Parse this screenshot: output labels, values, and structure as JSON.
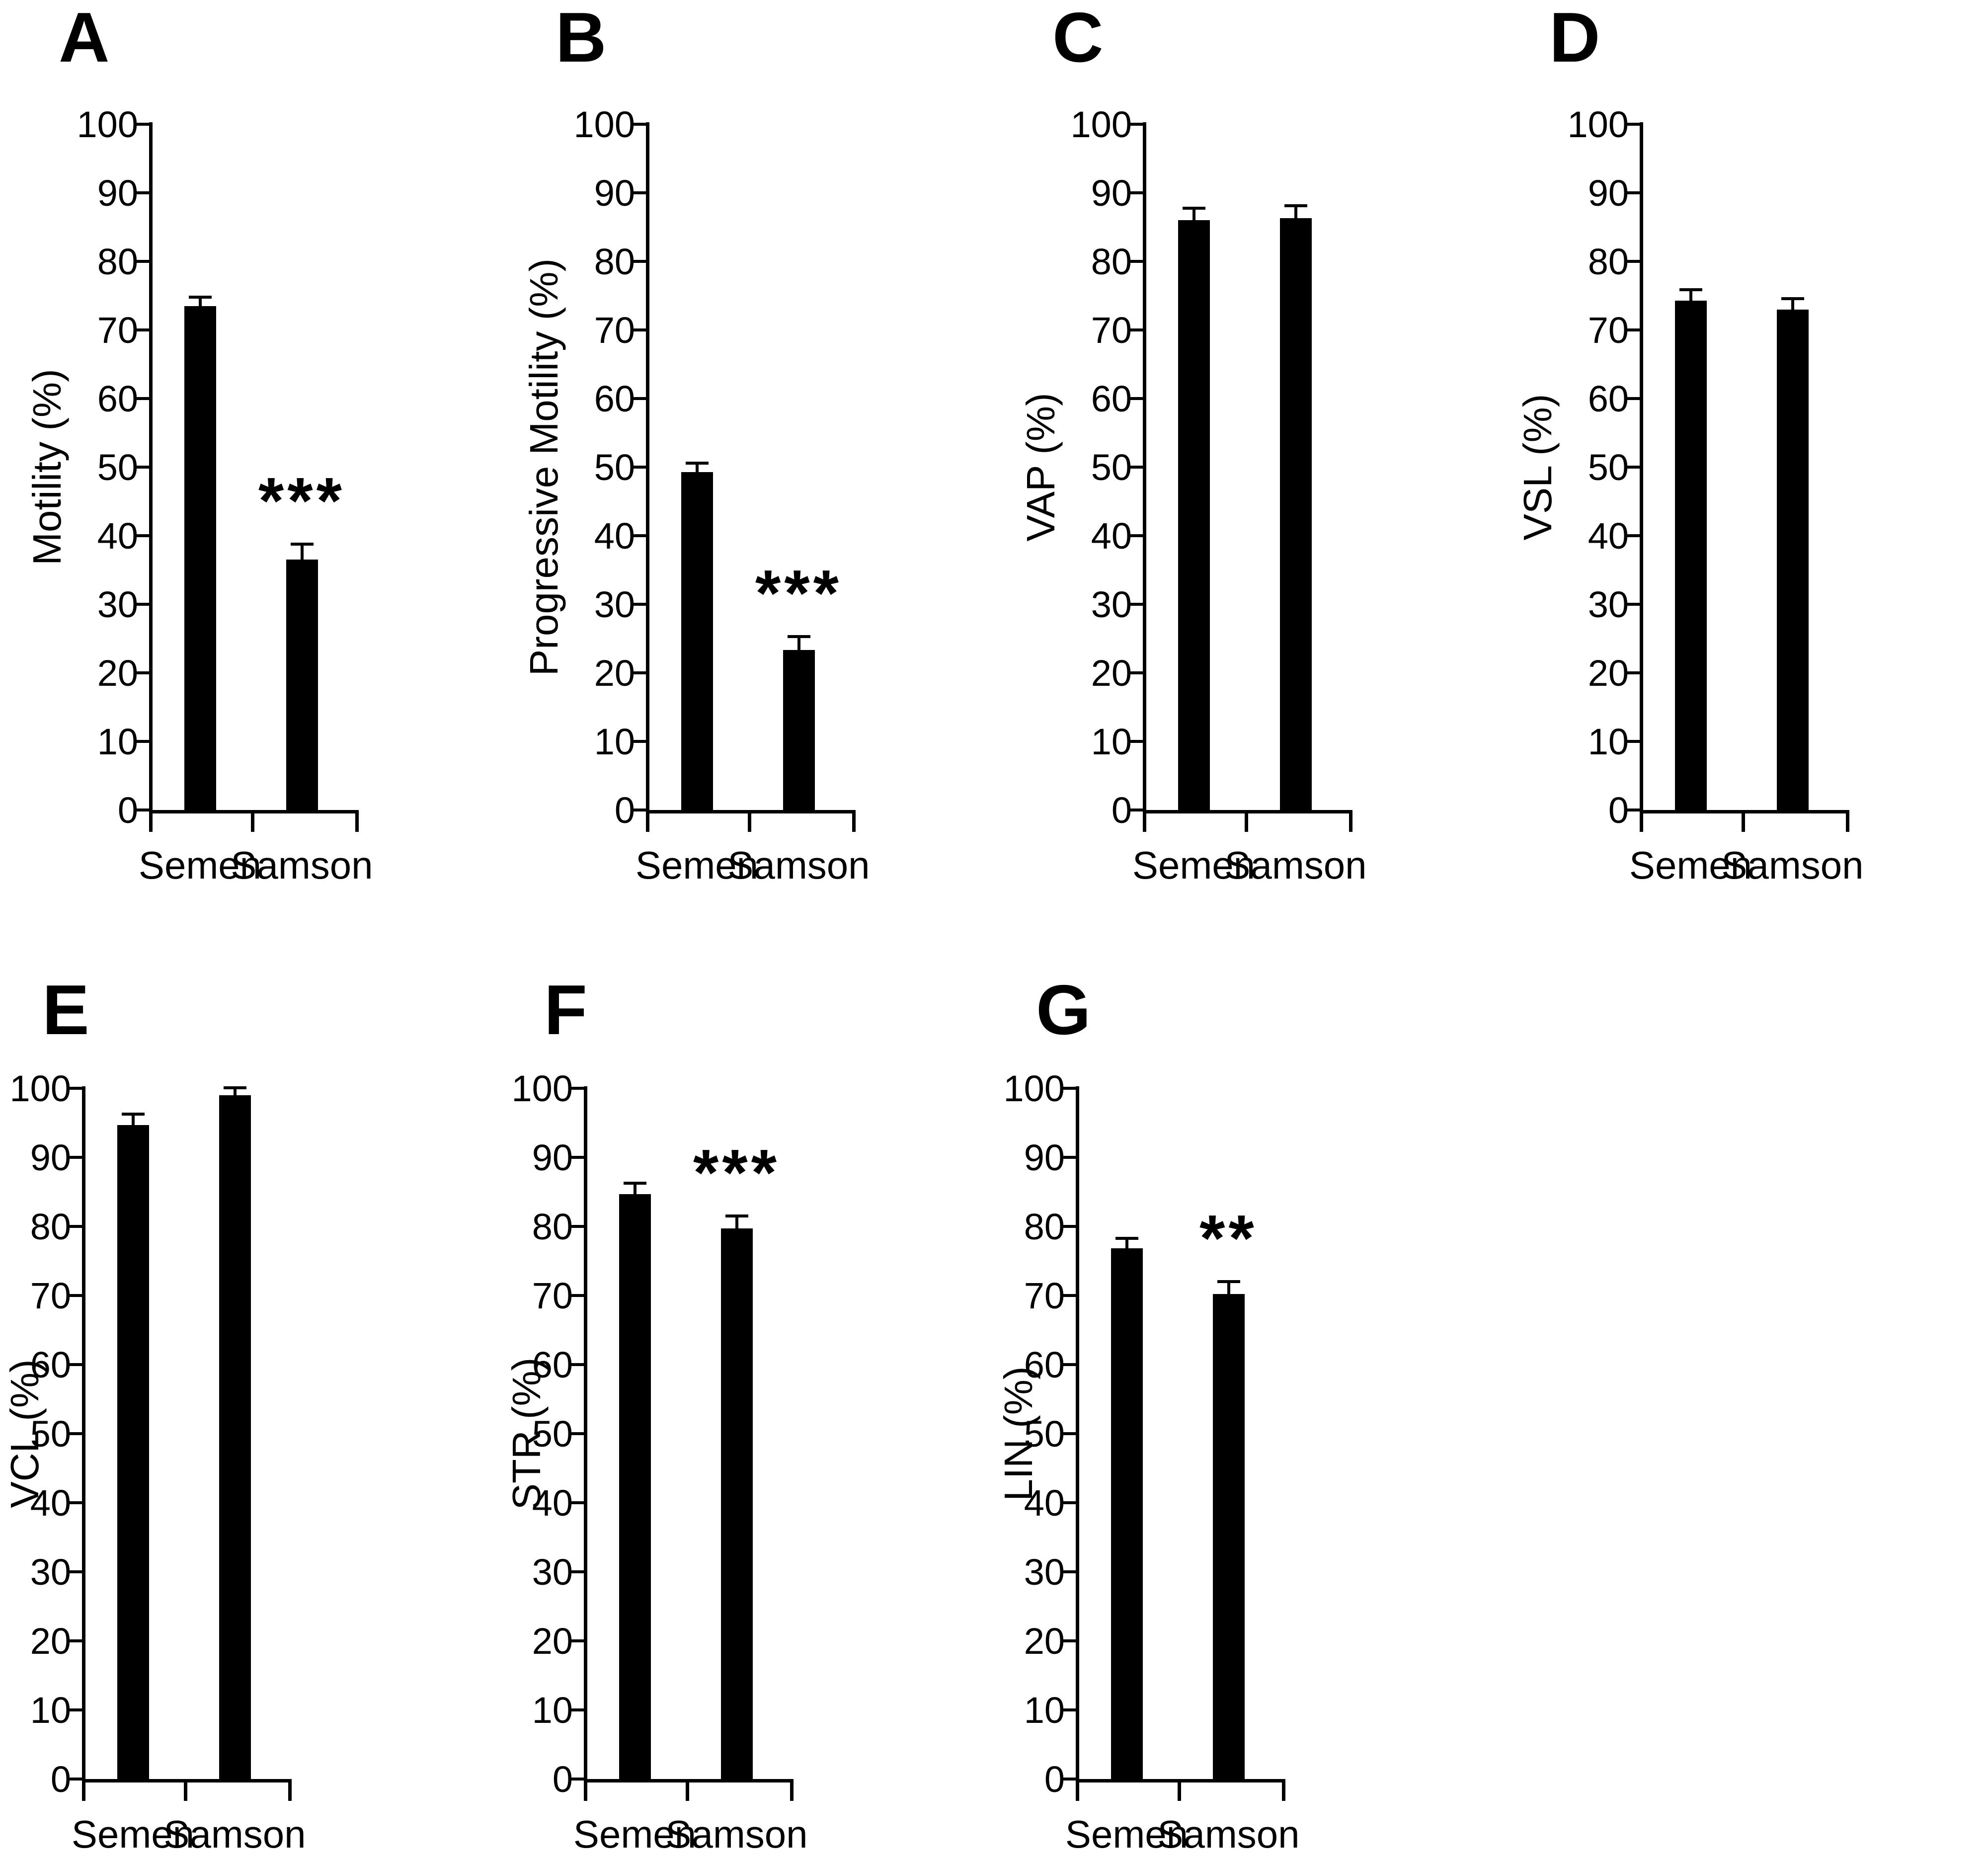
{
  "figure_background": "#ffffff",
  "bar_color": "#000000",
  "axis_color": "#000000",
  "y_axis": {
    "ticks": [
      "0",
      "10",
      "20",
      "30",
      "40",
      "50",
      "60",
      "70",
      "80",
      "90",
      "100"
    ]
  },
  "chart_data": [
    {
      "type": "bar",
      "title": "A",
      "ylabel": "Motility (%)",
      "ylim": [
        0,
        100
      ],
      "ytick_step": 10,
      "categories": [
        "Semen",
        "Samson"
      ],
      "values": [
        73.5,
        36.5
      ],
      "errors": [
        1.5,
        2.5
      ],
      "sig": [
        "",
        "***"
      ],
      "legend": "none",
      "grid": "off"
    },
    {
      "type": "bar",
      "title": "B",
      "ylabel": "Progressive Motility (%)",
      "ylim": [
        0,
        100
      ],
      "ytick_step": 10,
      "categories": [
        "Semen",
        "Samson"
      ],
      "values": [
        49.3,
        23.3
      ],
      "errors": [
        1.5,
        2.2
      ],
      "sig": [
        "",
        "***"
      ],
      "legend": "none",
      "grid": "off"
    },
    {
      "type": "bar",
      "title": "C",
      "ylabel": "VAP (%)",
      "ylim": [
        0,
        100
      ],
      "ytick_step": 10,
      "categories": [
        "Semen",
        "Samson"
      ],
      "values": [
        86.0,
        86.3
      ],
      "errors": [
        2.0,
        2.0
      ],
      "sig": [
        "",
        ""
      ],
      "legend": "none",
      "grid": "off"
    },
    {
      "type": "bar",
      "title": "D",
      "ylabel": "VSL (%)",
      "ylim": [
        0,
        100
      ],
      "ytick_step": 10,
      "categories": [
        "Semen",
        "Samson"
      ],
      "values": [
        74.3,
        73.0
      ],
      "errors": [
        1.8,
        1.8
      ],
      "sig": [
        "",
        ""
      ],
      "legend": "none",
      "grid": "off"
    },
    {
      "type": "bar",
      "title": "E",
      "ylabel": "VCL (%)",
      "ylim": [
        0,
        100
      ],
      "ytick_step": 10,
      "categories": [
        "Semen",
        "Samson"
      ],
      "values": [
        94.7,
        99.0
      ],
      "errors": [
        1.8,
        1.3
      ],
      "sig": [
        "",
        ""
      ],
      "legend": "none",
      "grid": "off"
    },
    {
      "type": "bar",
      "title": "F",
      "ylabel": "STR (%)",
      "ylim": [
        0,
        100
      ],
      "ytick_step": 10,
      "categories": [
        "Semen",
        "Samson"
      ],
      "values": [
        84.7,
        79.7
      ],
      "errors": [
        1.8,
        2.0
      ],
      "sig": [
        "",
        "***"
      ],
      "legend": "none",
      "grid": "off"
    },
    {
      "type": "bar",
      "title": "G",
      "ylabel": "LIN (%)",
      "ylim": [
        0,
        100
      ],
      "ytick_step": 10,
      "categories": [
        "Semen",
        "Samson"
      ],
      "values": [
        76.8,
        70.2
      ],
      "errors": [
        1.7,
        2.0
      ],
      "sig": [
        "",
        "**"
      ],
      "legend": "none",
      "grid": "off"
    }
  ]
}
